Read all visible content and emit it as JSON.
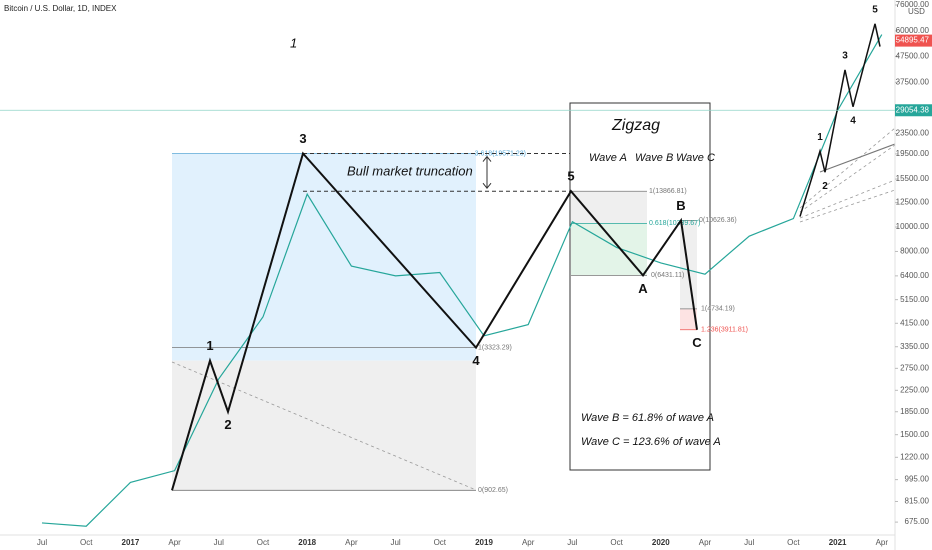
{
  "chart_data": {
    "type": "line",
    "title": "Bitcoin / U.S. Dollar, 1D, INDEX",
    "currency": "USD",
    "log_scale": true,
    "color": "#26a69a",
    "categories": [
      "Jul",
      "Oct",
      "2017",
      "Apr",
      "Jul",
      "Oct",
      "2018",
      "Apr",
      "Jul",
      "Oct",
      "2019",
      "Apr",
      "Jul",
      "Oct",
      "2020",
      "Apr",
      "Jul",
      "Oct",
      "2021",
      "Apr"
    ],
    "values": [
      670,
      650,
      970,
      1080,
      2500,
      4400,
      13500,
      7000,
      6400,
      6600,
      3700,
      4100,
      10500,
      8300,
      7200,
      6500,
      9200,
      10800,
      29000,
      58000
    ],
    "ylim": [
      600,
      76000
    ],
    "yticks": [
      {
        "value": 675,
        "label": "675.00"
      },
      {
        "value": 815,
        "label": "815.00"
      },
      {
        "value": 995,
        "label": "995.00"
      },
      {
        "value": 1220,
        "label": "1220.00"
      },
      {
        "value": 1500,
        "label": "1500.00"
      },
      {
        "value": 1850,
        "label": "1850.00"
      },
      {
        "value": 2250,
        "label": "2250.00"
      },
      {
        "value": 2750,
        "label": "2750.00"
      },
      {
        "value": 3350,
        "label": "3350.00"
      },
      {
        "value": 4150,
        "label": "4150.00"
      },
      {
        "value": 5150,
        "label": "5150.00"
      },
      {
        "value": 6400,
        "label": "6400.00"
      },
      {
        "value": 8000,
        "label": "8000.00"
      },
      {
        "value": 10000,
        "label": "10000.00"
      },
      {
        "value": 12500,
        "label": "12500.00"
      },
      {
        "value": 15500,
        "label": "15500.00"
      },
      {
        "value": 19500,
        "label": "19500.00"
      },
      {
        "value": 23500,
        "label": "23500.00"
      },
      {
        "value": 37500,
        "label": "37500.00"
      },
      {
        "value": 47500,
        "label": "47500.00"
      },
      {
        "value": 60000,
        "label": "60000.00"
      },
      {
        "value": 76000,
        "label": "76000.00"
      }
    ],
    "price_tags": [
      54895.47,
      29054.38
    ],
    "price_tag_colors": [
      "#ef5350",
      "#26a69a"
    ],
    "waves": [
      {
        "label": null,
        "value": 902.65
      },
      {
        "label": "1",
        "value": 2950
      },
      {
        "label": "2",
        "value": 1850
      },
      {
        "label": "3",
        "value": 19571.23
      },
      {
        "label": "4",
        "value": 3323.29
      },
      {
        "label": "5",
        "value": 13866.81
      },
      {
        "label": "A",
        "value": 6431.11
      },
      {
        "label": "B",
        "value": 10626.36
      },
      {
        "label": "C",
        "value": 3911.81
      }
    ],
    "sub_waves": [
      {
        "label": null,
        "value": 11000
      },
      {
        "label": "1",
        "value": 20000
      },
      {
        "label": "2",
        "value": 16500
      },
      {
        "label": "3",
        "value": 42000
      },
      {
        "label": "4",
        "value": 30000
      },
      {
        "label": "5",
        "value": 64000
      },
      {
        "label": null,
        "value": 52000
      }
    ],
    "fib_levels": [
      {
        "label": "3.618(19571.23)",
        "value": 19571.23,
        "color": "#5aa9d6"
      },
      {
        "label": "1(3323.29)",
        "value": 3323.29,
        "color": "#777"
      },
      {
        "label": "0(902.65)",
        "value": 902.65,
        "color": "#777"
      },
      {
        "label": "1(13866.81)",
        "value": 13866.81,
        "color": "#777"
      },
      {
        "label": "0.618(10339.67)",
        "value": 10339.67,
        "color": "#26a69a"
      },
      {
        "label": "0(6431.11)",
        "value": 6431.11,
        "color": "#777"
      },
      {
        "label": "0(10626.36)",
        "value": 10626.36,
        "color": "#777"
      },
      {
        "label": "1(4734.19)",
        "value": 4734.19,
        "color": "#777"
      },
      {
        "label": "1.236(3911.81)",
        "value": 3911.81,
        "color": "#ef5350"
      }
    ],
    "annotations": [
      "1",
      "Zigzag",
      "Wave A",
      "Wave B",
      "Wave C",
      "Bull market truncation",
      "Wave B =  61.8% of wave A",
      "Wave C = 123.6% of wave A"
    ]
  }
}
